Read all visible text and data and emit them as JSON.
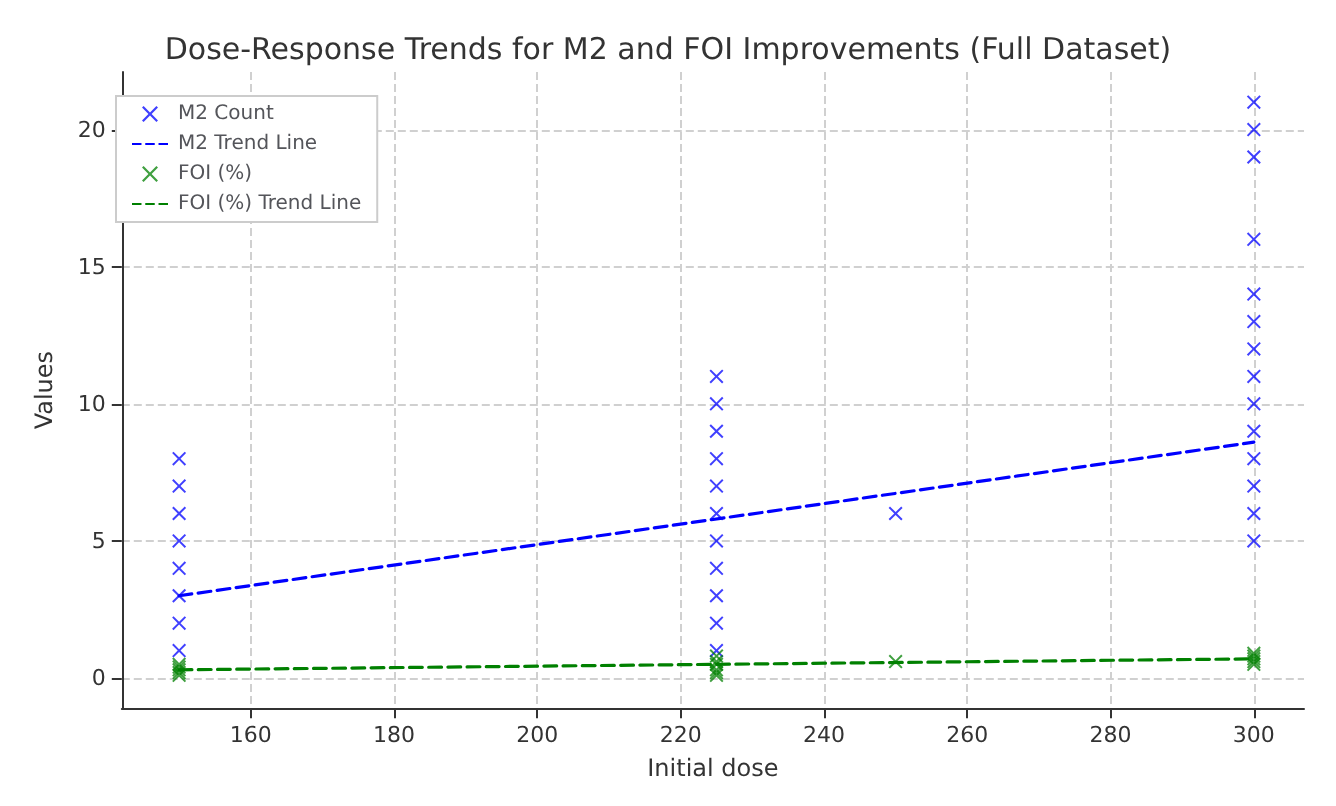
{
  "chart_data": {
    "type": "scatter",
    "title": "Dose-Response Trends for M2 and FOI Improvements (Full Dataset)",
    "xlabel": "Initial dose",
    "ylabel": "Values",
    "xlim": [
      142,
      307
    ],
    "xticks": [
      160,
      180,
      200,
      220,
      240,
      260,
      280,
      300
    ],
    "ylim": [
      -1.1,
      22.1
    ],
    "yticks": [
      0,
      5,
      10,
      15,
      20
    ],
    "grid": true,
    "legend": "top left",
    "series": [
      {
        "name": "M2 Count",
        "marker": "cross",
        "color": "#0000ff",
        "x": [
          150,
          150,
          150,
          150,
          150,
          150,
          150,
          150,
          225,
          225,
          225,
          225,
          225,
          225,
          225,
          225,
          225,
          225,
          225,
          250,
          300,
          300,
          300,
          300,
          300,
          300,
          300,
          300,
          300,
          300,
          300,
          300,
          300,
          300
        ],
        "values": [
          1,
          2,
          3,
          4,
          5,
          6,
          7,
          8,
          1,
          2,
          3,
          4,
          5,
          6,
          7,
          8,
          9,
          10,
          11,
          6,
          5,
          6,
          7,
          8,
          9,
          10,
          11,
          12,
          13,
          14,
          16,
          19,
          20,
          21
        ]
      },
      {
        "name": "M2 Trend Line",
        "type": "line",
        "marker": "none",
        "color": "#0000ff",
        "line_style": "dashed",
        "x": [
          150,
          300
        ],
        "values": [
          3.0,
          8.6
        ]
      },
      {
        "name": "FOI (%)",
        "marker": "cross",
        "color": "#008000",
        "x": [
          150,
          150,
          150,
          150,
          150,
          225,
          225,
          225,
          225,
          225,
          225,
          250,
          300,
          300,
          300,
          300,
          300
        ],
        "values": [
          0.1,
          0.2,
          0.3,
          0.4,
          0.5,
          0.1,
          0.2,
          0.3,
          0.5,
          0.6,
          0.8,
          0.6,
          0.5,
          0.6,
          0.7,
          0.8,
          0.9
        ]
      },
      {
        "name": "FOI (%) Trend Line",
        "type": "line",
        "marker": "none",
        "color": "#008000",
        "line_style": "dashed",
        "x": [
          150,
          300
        ],
        "values": [
          0.3,
          0.7
        ]
      }
    ]
  }
}
